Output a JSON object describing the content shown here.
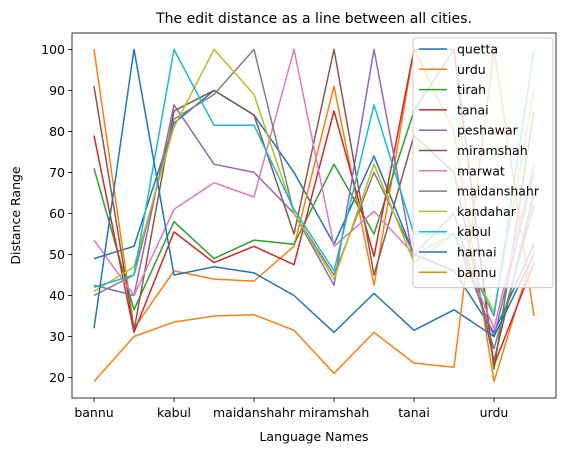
{
  "chart_data": {
    "type": "line",
    "title": "The edit distance as a line between all cities.",
    "xlabel": "Language Names",
    "ylabel": "Distance Range",
    "ylim": [
      15,
      104
    ],
    "yticks": [
      20,
      30,
      40,
      50,
      60,
      70,
      80,
      90,
      100
    ],
    "xtick_labels": [
      "bannu",
      "kabul",
      "maidanshahr",
      "miramshah",
      "tanai",
      "urdu"
    ],
    "xtick_positions": [
      0,
      2,
      4,
      6,
      8,
      10
    ],
    "x": [
      0,
      1,
      2,
      3,
      4,
      5,
      6,
      7,
      8,
      9,
      10,
      11
    ],
    "legend_position": "upper right",
    "grid": false,
    "series": [
      {
        "name": "quetta",
        "color": "#1f77b4",
        "values": [
          49,
          52,
          82,
          90,
          84,
          70,
          52.5,
          74,
          50,
          46,
          31,
          52.5
        ]
      },
      {
        "name": "urdu",
        "color": "#ff7f0e",
        "values": [
          100,
          32,
          46,
          44,
          43.5,
          52,
          91,
          42.5,
          100,
          80,
          19,
          51
        ]
      },
      {
        "name": "tirah",
        "color": "#2ca02c",
        "values": [
          71,
          36.5,
          58,
          49,
          53.5,
          52.5,
          72,
          55,
          85,
          100,
          22,
          85
        ]
      },
      {
        "name": "tanai",
        "color": "#d62728",
        "values": [
          79,
          31,
          55.5,
          48,
          52,
          47.5,
          85,
          49.5,
          100,
          100,
          23,
          48
        ]
      },
      {
        "name": "peshawar",
        "color": "#9467bd",
        "values": [
          42.5,
          40,
          86.5,
          72,
          70,
          60,
          42.5,
          100,
          48,
          55,
          30,
          70
        ]
      },
      {
        "name": "miramshah",
        "color": "#8c564b",
        "values": [
          91,
          31.5,
          85,
          90,
          84,
          55,
          100,
          45,
          79,
          70,
          24,
          65
        ]
      },
      {
        "name": "marwat",
        "color": "#e377c2",
        "values": [
          53.5,
          40,
          61,
          67.5,
          64,
          100,
          52,
          60.5,
          50,
          55,
          32,
          72
        ]
      },
      {
        "name": "maidanshahr",
        "color": "#7f7f7f",
        "values": [
          40,
          45,
          83,
          89,
          100,
          60,
          45,
          70,
          50,
          60,
          27,
          62
        ]
      },
      {
        "name": "kandahar",
        "color": "#bcbd22",
        "values": [
          41,
          47,
          81,
          100,
          89,
          60,
          44,
          72,
          48,
          55,
          36,
          90
        ]
      },
      {
        "name": "kabul",
        "color": "#17becf",
        "values": [
          42,
          45,
          100,
          81.5,
          81.5,
          61,
          46,
          86.5,
          55,
          55,
          35,
          100
        ]
      },
      {
        "name": "harnai",
        "color": "#1f77b4",
        "values": [
          32,
          100,
          45,
          47,
          45.5,
          40,
          31,
          40.5,
          31.5,
          36.5,
          30,
          50
        ]
      },
      {
        "name": "bannu",
        "color": "#ff7f0e",
        "values": [
          19,
          30,
          33.5,
          35,
          35.3,
          31.5,
          21,
          31,
          23.5,
          22.5,
          100,
          35
        ]
      }
    ]
  }
}
